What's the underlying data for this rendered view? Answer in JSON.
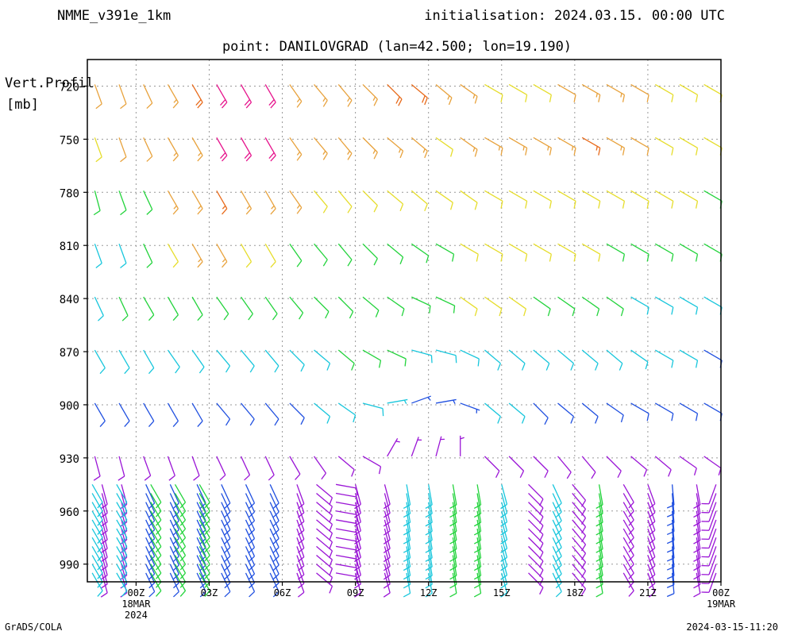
{
  "header": {
    "model": "NMME_v391e_1km",
    "init": "initialisation: 2024.03.15. 00:00 UTC",
    "point": "point: DANILOVGRAD (lan=42.500; lon=19.190)"
  },
  "footer": {
    "left": "GrADS/COLA",
    "right": "2024-03-15-11:20"
  },
  "chart_data": {
    "type": "wind-barb profile",
    "title": "point: DANILOVGRAD (lan=42.500; lon=19.190)",
    "ylabel": "Vert.Profil [mb]",
    "yticks": [
      "720",
      "750",
      "780",
      "810",
      "840",
      "870",
      "900",
      "930",
      "960",
      "990"
    ],
    "y_range_mb": [
      1000,
      705
    ],
    "x_range_hours": [
      -2,
      24
    ],
    "xticks": [
      {
        "hour": 0,
        "label": "00Z",
        "sub": [
          "18MAR",
          "2024"
        ]
      },
      {
        "hour": 3,
        "label": "03Z",
        "sub": []
      },
      {
        "hour": 6,
        "label": "06Z",
        "sub": []
      },
      {
        "hour": 9,
        "label": "09Z",
        "sub": []
      },
      {
        "hour": 12,
        "label": "12Z",
        "sub": []
      },
      {
        "hour": 15,
        "label": "15Z",
        "sub": []
      },
      {
        "hour": 18,
        "label": "18Z",
        "sub": []
      },
      {
        "hour": 21,
        "label": "21Z",
        "sub": []
      },
      {
        "hour": 24,
        "label": "00Z",
        "sub": [
          "19MAR"
        ]
      }
    ],
    "grid": true,
    "speed_colors": [
      "#1f4fe0",
      "#17c6dc",
      "#22d33b",
      "#e6dd2a",
      "#e8a23c",
      "#e86a1a",
      "#e6138c",
      "#9a14d6"
    ],
    "levels_mb": [
      720,
      750,
      780,
      810,
      840,
      870,
      900,
      930
    ],
    "hours": [
      -1.5,
      -0.5,
      0.5,
      1.5,
      2.5,
      3.5,
      4.5,
      5.5,
      6.5,
      7.5,
      8.5,
      9.5,
      10.5,
      11.5,
      12.5,
      13.5,
      14.5,
      15.5,
      16.5,
      17.5,
      18.5,
      19.5,
      20.5,
      21.5,
      22.5,
      23.5
    ],
    "barbs_upper": [
      [
        [
          160,
          12,
          4
        ],
        [
          160,
          12,
          4
        ],
        [
          155,
          12,
          4
        ],
        [
          150,
          14,
          4
        ],
        [
          150,
          20,
          5
        ],
        [
          150,
          22,
          6
        ],
        [
          150,
          22,
          6
        ],
        [
          150,
          22,
          6
        ],
        [
          145,
          16,
          4
        ],
        [
          140,
          14,
          4
        ],
        [
          140,
          14,
          4
        ],
        [
          135,
          14,
          4
        ],
        [
          135,
          20,
          5
        ],
        [
          130,
          20,
          5
        ],
        [
          130,
          14,
          4
        ],
        [
          125,
          14,
          4
        ],
        [
          120,
          12,
          3
        ],
        [
          120,
          12,
          3
        ],
        [
          120,
          12,
          3
        ],
        [
          120,
          12,
          4
        ],
        [
          120,
          14,
          4
        ],
        [
          120,
          14,
          4
        ],
        [
          120,
          12,
          4
        ],
        [
          120,
          12,
          3
        ],
        [
          120,
          12,
          3
        ],
        [
          120,
          12,
          3
        ]
      ],
      [
        [
          160,
          12,
          3
        ],
        [
          160,
          12,
          4
        ],
        [
          155,
          12,
          4
        ],
        [
          150,
          14,
          4
        ],
        [
          150,
          16,
          4
        ],
        [
          150,
          22,
          6
        ],
        [
          150,
          22,
          6
        ],
        [
          150,
          22,
          6
        ],
        [
          145,
          16,
          4
        ],
        [
          140,
          14,
          4
        ],
        [
          140,
          14,
          4
        ],
        [
          135,
          14,
          4
        ],
        [
          130,
          14,
          4
        ],
        [
          130,
          14,
          4
        ],
        [
          125,
          12,
          3
        ],
        [
          125,
          14,
          4
        ],
        [
          120,
          14,
          4
        ],
        [
          120,
          14,
          4
        ],
        [
          120,
          14,
          4
        ],
        [
          120,
          14,
          4
        ],
        [
          120,
          14,
          5
        ],
        [
          120,
          14,
          4
        ],
        [
          120,
          12,
          4
        ],
        [
          120,
          12,
          3
        ],
        [
          120,
          12,
          3
        ],
        [
          120,
          12,
          3
        ]
      ],
      [
        [
          165,
          12,
          2
        ],
        [
          160,
          12,
          2
        ],
        [
          155,
          12,
          2
        ],
        [
          150,
          14,
          4
        ],
        [
          150,
          14,
          4
        ],
        [
          150,
          16,
          5
        ],
        [
          150,
          14,
          4
        ],
        [
          150,
          14,
          4
        ],
        [
          145,
          14,
          4
        ],
        [
          140,
          12,
          3
        ],
        [
          140,
          12,
          3
        ],
        [
          135,
          12,
          3
        ],
        [
          130,
          12,
          3
        ],
        [
          130,
          12,
          3
        ],
        [
          125,
          12,
          3
        ],
        [
          125,
          12,
          3
        ],
        [
          120,
          12,
          3
        ],
        [
          120,
          12,
          3
        ],
        [
          120,
          12,
          3
        ],
        [
          120,
          12,
          3
        ],
        [
          120,
          12,
          3
        ],
        [
          120,
          12,
          3
        ],
        [
          120,
          12,
          3
        ],
        [
          120,
          12,
          3
        ],
        [
          120,
          12,
          3
        ],
        [
          120,
          12,
          2
        ]
      ],
      [
        [
          160,
          10,
          1
        ],
        [
          160,
          12,
          1
        ],
        [
          155,
          12,
          2
        ],
        [
          150,
          12,
          3
        ],
        [
          150,
          14,
          4
        ],
        [
          150,
          14,
          4
        ],
        [
          150,
          12,
          3
        ],
        [
          150,
          12,
          3
        ],
        [
          145,
          12,
          2
        ],
        [
          140,
          12,
          2
        ],
        [
          140,
          12,
          2
        ],
        [
          135,
          12,
          2
        ],
        [
          130,
          12,
          2
        ],
        [
          125,
          12,
          2
        ],
        [
          120,
          12,
          2
        ],
        [
          120,
          12,
          3
        ],
        [
          120,
          12,
          3
        ],
        [
          120,
          12,
          3
        ],
        [
          120,
          12,
          3
        ],
        [
          120,
          12,
          3
        ],
        [
          120,
          12,
          3
        ],
        [
          120,
          12,
          2
        ],
        [
          120,
          12,
          2
        ],
        [
          120,
          12,
          2
        ],
        [
          120,
          12,
          2
        ],
        [
          120,
          12,
          2
        ]
      ],
      [
        [
          155,
          10,
          1
        ],
        [
          155,
          10,
          2
        ],
        [
          150,
          10,
          2
        ],
        [
          150,
          12,
          2
        ],
        [
          150,
          12,
          2
        ],
        [
          145,
          12,
          2
        ],
        [
          145,
          12,
          2
        ],
        [
          145,
          12,
          2
        ],
        [
          140,
          12,
          2
        ],
        [
          135,
          12,
          2
        ],
        [
          135,
          12,
          2
        ],
        [
          130,
          10,
          2
        ],
        [
          125,
          10,
          2
        ],
        [
          115,
          10,
          2
        ],
        [
          115,
          10,
          2
        ],
        [
          125,
          12,
          3
        ],
        [
          125,
          12,
          3
        ],
        [
          125,
          12,
          3
        ],
        [
          125,
          12,
          2
        ],
        [
          125,
          12,
          2
        ],
        [
          125,
          12,
          2
        ],
        [
          125,
          12,
          2
        ],
        [
          120,
          10,
          1
        ],
        [
          120,
          10,
          1
        ],
        [
          120,
          10,
          1
        ],
        [
          120,
          10,
          1
        ]
      ],
      [
        [
          150,
          8,
          1
        ],
        [
          150,
          8,
          1
        ],
        [
          150,
          10,
          1
        ],
        [
          145,
          10,
          1
        ],
        [
          145,
          10,
          1
        ],
        [
          140,
          10,
          1
        ],
        [
          140,
          10,
          1
        ],
        [
          140,
          10,
          1
        ],
        [
          135,
          10,
          1
        ],
        [
          130,
          10,
          1
        ],
        [
          130,
          10,
          2
        ],
        [
          120,
          10,
          2
        ],
        [
          115,
          10,
          2
        ],
        [
          105,
          10,
          1
        ],
        [
          105,
          10,
          1
        ],
        [
          115,
          10,
          1
        ],
        [
          130,
          10,
          1
        ],
        [
          130,
          10,
          1
        ],
        [
          130,
          10,
          1
        ],
        [
          130,
          10,
          1
        ],
        [
          130,
          10,
          1
        ],
        [
          130,
          10,
          1
        ],
        [
          125,
          10,
          1
        ],
        [
          120,
          10,
          1
        ],
        [
          120,
          10,
          1
        ],
        [
          120,
          8,
          0
        ]
      ],
      [
        [
          150,
          8,
          0
        ],
        [
          150,
          8,
          0
        ],
        [
          150,
          8,
          0
        ],
        [
          150,
          8,
          0
        ],
        [
          150,
          8,
          0
        ],
        [
          140,
          8,
          0
        ],
        [
          140,
          8,
          0
        ],
        [
          140,
          8,
          0
        ],
        [
          135,
          8,
          0
        ],
        [
          130,
          8,
          1
        ],
        [
          125,
          8,
          1
        ],
        [
          105,
          8,
          1
        ],
        [
          80,
          6,
          1
        ],
        [
          70,
          6,
          0
        ],
        [
          80,
          6,
          0
        ],
        [
          110,
          6,
          0
        ],
        [
          130,
          8,
          1
        ],
        [
          130,
          8,
          1
        ],
        [
          135,
          8,
          0
        ],
        [
          130,
          8,
          0
        ],
        [
          130,
          8,
          0
        ],
        [
          125,
          8,
          0
        ],
        [
          120,
          8,
          0
        ],
        [
          120,
          8,
          0
        ],
        [
          120,
          8,
          0
        ],
        [
          120,
          8,
          0
        ]
      ],
      [
        [
          165,
          8,
          7
        ],
        [
          165,
          8,
          7
        ],
        [
          160,
          8,
          7
        ],
        [
          160,
          8,
          7
        ],
        [
          160,
          8,
          7
        ],
        [
          155,
          8,
          7
        ],
        [
          155,
          8,
          7
        ],
        [
          155,
          8,
          7
        ],
        [
          150,
          8,
          7
        ],
        [
          145,
          8,
          7
        ],
        [
          130,
          8,
          7
        ],
        [
          120,
          8,
          7
        ],
        [
          30,
          6,
          7
        ],
        [
          20,
          6,
          7
        ],
        [
          15,
          6,
          7
        ],
        [
          0,
          6,
          7
        ],
        [
          135,
          8,
          7
        ],
        [
          135,
          8,
          7
        ],
        [
          135,
          8,
          7
        ],
        [
          140,
          8,
          7
        ],
        [
          140,
          8,
          7
        ],
        [
          135,
          8,
          7
        ],
        [
          130,
          8,
          7
        ],
        [
          130,
          8,
          7
        ],
        [
          125,
          8,
          7
        ],
        [
          125,
          8,
          7
        ]
      ]
    ],
    "lower_levels_mb": [
      945,
      950,
      955,
      960,
      965,
      970,
      975,
      980,
      985,
      990,
      995
    ],
    "lower_columns": [
      {
        "hour": -1.4,
        "dir": 165,
        "color": 7
      },
      {
        "hour": -1.8,
        "dir": 150,
        "color": 1
      },
      {
        "hour": -0.6,
        "dir": 165,
        "color": 7
      },
      {
        "hour": -0.8,
        "dir": 150,
        "color": 1
      },
      {
        "hour": 0.4,
        "dir": 155,
        "color": 0
      },
      {
        "hour": 0.6,
        "dir": 150,
        "color": 2
      },
      {
        "hour": 1.4,
        "dir": 155,
        "color": 0
      },
      {
        "hour": 1.6,
        "dir": 150,
        "color": 2
      },
      {
        "hour": 2.5,
        "dir": 155,
        "color": 0
      },
      {
        "hour": 2.6,
        "dir": 150,
        "color": 2
      },
      {
        "hour": 3.5,
        "dir": 155,
        "color": 0
      },
      {
        "hour": 4.5,
        "dir": 155,
        "color": 0
      },
      {
        "hour": 5.5,
        "dir": 155,
        "color": 0
      },
      {
        "hour": 6.6,
        "dir": 160,
        "color": 7
      },
      {
        "hour": 7.4,
        "dir": 130,
        "color": 7
      },
      {
        "hour": 8.2,
        "dir": 100,
        "color": 7
      },
      {
        "hour": 9.0,
        "dir": 165,
        "color": 7
      },
      {
        "hour": 10.2,
        "dir": 165,
        "color": 7
      },
      {
        "hour": 11.1,
        "dir": 170,
        "color": 1
      },
      {
        "hour": 12.0,
        "dir": 170,
        "color": 1
      },
      {
        "hour": 13.0,
        "dir": 170,
        "color": 2
      },
      {
        "hour": 14.0,
        "dir": 170,
        "color": 2
      },
      {
        "hour": 15.0,
        "dir": 165,
        "color": 1
      },
      {
        "hour": 16.1,
        "dir": 135,
        "color": 7
      },
      {
        "hour": 17.1,
        "dir": 155,
        "color": 1
      },
      {
        "hour": 17.9,
        "dir": 140,
        "color": 7
      },
      {
        "hour": 19.0,
        "dir": 170,
        "color": 2
      },
      {
        "hour": 20.0,
        "dir": 150,
        "color": 7
      },
      {
        "hour": 21.0,
        "dir": 160,
        "color": 7
      },
      {
        "hour": 22.0,
        "dir": 175,
        "color": 0
      },
      {
        "hour": 23.0,
        "dir": 170,
        "color": 7
      },
      {
        "hour": 23.8,
        "dir": 200,
        "color": 7
      }
    ]
  }
}
